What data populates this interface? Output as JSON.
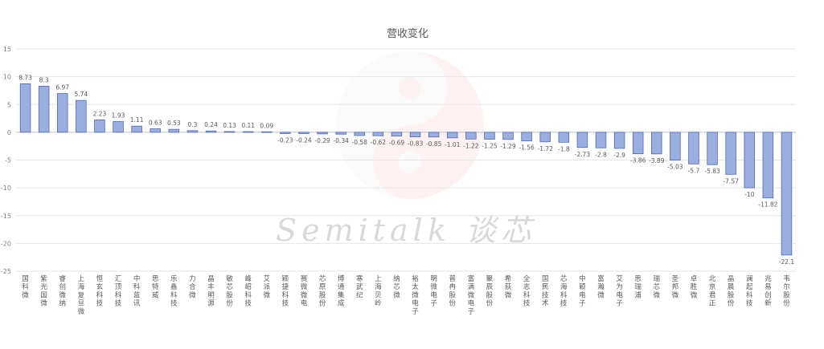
{
  "chart_data": {
    "type": "bar",
    "title": "营收变化",
    "xlabel": "",
    "ylabel": "",
    "ylim": [
      -25,
      15
    ],
    "yticks": [
      15,
      10,
      5,
      0,
      -5,
      -10,
      -15,
      -20,
      -25
    ],
    "grid": true,
    "legend": "none",
    "watermark": "Semitalk 谈芯",
    "colors": {
      "bar_fill": "#9aaee0",
      "bar_stroke": "#4e6bb8",
      "grid": "#e6e6e6"
    },
    "categories": [
      "国科微",
      "紫光国微",
      "睿创微纳",
      "上海复旦微",
      "恒玄科技",
      "汇顶科技",
      "中科蓝讯",
      "思特威",
      "乐鑫科技",
      "力合微",
      "晶丰明源",
      "敏芯股份",
      "峰岹科技",
      "艾派微",
      "颖捷科技",
      "赛微微电",
      "芯原股份",
      "博通集成",
      "寒武纪",
      "上海贝岭",
      "纳芯微",
      "裕太微电子",
      "明微电子",
      "普冉股份",
      "富满微电子",
      "聚辰股份",
      "希荻微",
      "全志科技",
      "国民技术",
      "芯海科技",
      "中颖电子",
      "富瀚微",
      "艾为电子",
      "思瑞浦",
      "瑞芯微",
      "圣邦微",
      "卓胜微",
      "北京君正",
      "晶晨股份",
      "澜起科技",
      "兆易创新",
      "韦尔股份"
    ],
    "values": [
      8.73,
      8.3,
      6.97,
      5.74,
      2.23,
      1.93,
      1.11,
      0.63,
      0.53,
      0.3,
      0.24,
      0.13,
      0.11,
      0.09,
      -0.23,
      -0.24,
      -0.29,
      -0.34,
      -0.58,
      -0.62,
      -0.69,
      -0.83,
      -0.85,
      -1.01,
      -1.22,
      -1.25,
      -1.29,
      -1.56,
      -1.72,
      -1.8,
      -2.73,
      -2.8,
      -2.9,
      -3.86,
      -3.89,
      -5.03,
      -5.7,
      -5.83,
      -7.57,
      -10,
      -11.82,
      -22.1
    ],
    "labels": [
      "8.73",
      "8.3",
      "6.97",
      "5.74",
      "2.23",
      "1.93",
      "1.11",
      "0.63",
      "0.53",
      "0.3",
      "0.24",
      "0.13",
      "0.11",
      "0.09",
      "-0.23",
      "-0.24",
      "-0.29",
      "-0.34",
      "-0.58",
      "-0.62",
      "-0.69",
      "-0.83",
      "-0.85",
      "-1.01",
      "-1.22",
      "-1.25",
      "-1.29",
      "-1.56",
      "-1.72",
      "-1.8",
      "-2.73",
      "-2.8",
      "-2.9",
      "-3.86",
      "-3.89",
      "-5.03",
      "-5.7",
      "-5.83",
      "-7.57",
      "-10",
      "-11.82",
      "-22.1"
    ]
  }
}
